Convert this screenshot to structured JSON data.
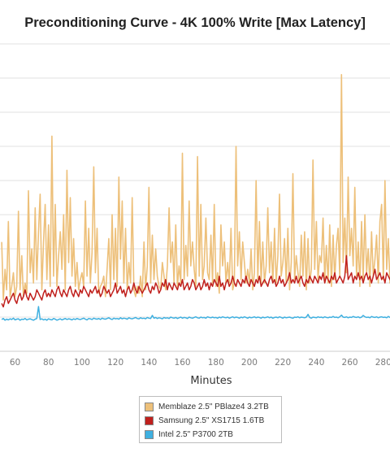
{
  "chart_data": {
    "type": "line",
    "title": "Preconditioning Curve - 4K 100% Write [Max Latency]",
    "xlabel": "Minutes",
    "ylabel": "",
    "x_tick_labels": [
      "60",
      "80",
      "100",
      "120",
      "140",
      "160",
      "180",
      "200",
      "220",
      "240",
      "260",
      "280"
    ],
    "xlim": [
      51,
      284
    ],
    "ylim": [
      0,
      9
    ],
    "grid": true,
    "legend_position": "bottom-center",
    "series": [
      {
        "name": "Memblaze 2.5\" PBlaze4 3.2TB",
        "color": "#edc07a",
        "x_start": 52,
        "values": [
          3.2,
          1.5,
          2.4,
          1.8,
          3.8,
          1.6,
          1.9,
          2.3,
          1.6,
          1.9,
          4.1,
          1.8,
          2.8,
          1.6,
          2.0,
          1.7,
          4.7,
          2.3,
          3.0,
          2.0,
          4.2,
          2.1,
          3.5,
          4.6,
          1.8,
          3.2,
          4.3,
          2.1,
          3.7,
          1.9,
          6.3,
          2.2,
          4.3,
          1.9,
          2.8,
          3.5,
          2.4,
          4.0,
          1.8,
          5.3,
          2.6,
          4.5,
          2.2,
          3.3,
          1.9,
          2.6,
          1.8,
          2.1,
          2.3,
          1.9,
          4.4,
          2.2,
          3.6,
          2.0,
          2.9,
          5.4,
          2.3,
          3.6,
          1.7,
          1.9,
          2.0,
          2.2,
          1.6,
          2.4,
          3.3,
          1.8,
          4.0,
          2.1,
          3.6,
          1.9,
          5.1,
          2.7,
          4.4,
          2.0,
          3.6,
          1.8,
          2.6,
          2.0,
          4.5,
          1.8,
          1.6,
          1.9,
          1.7,
          2.2,
          1.6,
          3.2,
          1.8,
          2.5,
          4.8,
          2.0,
          3.4,
          2.1,
          3.0,
          2.2,
          1.9,
          1.8,
          2.6,
          2.2,
          1.8,
          2.5,
          4.2,
          2.6,
          3.2,
          2.0,
          3.7,
          1.9,
          2.5,
          2.0,
          5.8,
          2.1,
          3.1,
          2.2,
          4.4,
          2.5,
          3.2,
          2.4,
          1.9,
          5.7,
          2.2,
          4.3,
          2.1,
          2.5,
          3.9,
          2.3,
          2.1,
          3.4,
          2.0,
          4.3,
          1.9,
          2.3,
          1.7,
          3.7,
          2.5,
          3.2,
          2.0,
          2.6,
          2.0,
          3.6,
          1.8,
          2.0,
          6.0,
          2.5,
          3.5,
          2.1,
          3.2,
          2.6,
          2.0,
          2.4,
          2.0,
          3.0,
          1.8,
          2.3,
          5.0,
          2.1,
          3.8,
          2.0,
          3.2,
          2.0,
          2.5,
          4.2,
          2.3,
          3.2,
          2.0,
          3.6,
          2.0,
          2.8,
          4.6,
          2.2,
          2.6,
          3.3,
          2.0,
          3.6,
          1.8,
          2.6,
          5.2,
          2.1,
          2.8,
          2.3,
          1.9,
          3.4,
          2.2,
          3.5,
          1.8,
          3.3,
          2.0,
          2.4,
          5.6,
          2.4,
          3.8,
          2.1,
          2.8,
          2.6,
          3.9,
          2.1,
          3.1,
          2.0,
          3.7,
          1.9,
          3.4,
          2.1,
          3.1,
          3.6,
          2.2,
          8.1,
          2.6,
          3.9,
          2.3,
          5.1,
          2.8,
          3.6,
          2.5,
          4.8,
          2.2,
          3.2,
          1.9,
          3.8,
          2.1,
          4.0,
          2.3,
          3.0,
          1.9,
          3.5,
          2.2,
          2.7,
          3.4,
          2.0,
          3.8,
          4.3,
          2.1,
          5.0,
          2.4,
          3.3,
          2.0,
          2.6,
          4.0,
          2.2,
          3.3,
          1.9,
          2.3
        ]
      },
      {
        "name": "Samsung 2.5\" XS1715 1.6TB",
        "color": "#c0201d",
        "x_start": 52,
        "values": [
          1.4,
          1.3,
          1.5,
          1.6,
          1.4,
          1.5,
          1.6,
          1.7,
          1.5,
          1.4,
          1.6,
          1.7,
          1.5,
          1.6,
          1.8,
          1.6,
          1.5,
          1.7,
          1.6,
          1.5,
          1.6,
          1.8,
          1.7,
          1.6,
          1.5,
          1.7,
          1.8,
          1.6,
          1.7,
          1.6,
          1.8,
          1.7,
          1.6,
          1.8,
          1.9,
          1.7,
          1.6,
          1.8,
          1.7,
          1.6,
          1.8,
          1.9,
          1.7,
          1.6,
          1.8,
          1.7,
          1.6,
          1.8,
          1.7,
          1.9,
          1.8,
          1.7,
          1.6,
          1.8,
          1.7,
          1.8,
          1.9,
          1.7,
          1.8,
          1.6,
          1.7,
          1.9,
          1.8,
          1.7,
          1.8,
          1.6,
          1.7,
          1.8,
          2.0,
          1.7,
          1.8,
          1.9,
          1.7,
          1.8,
          1.6,
          1.8,
          1.9,
          1.7,
          1.8,
          2.0,
          1.8,
          1.7,
          1.9,
          1.8,
          1.7,
          1.8,
          1.9,
          2.0,
          1.8,
          1.7,
          1.9,
          1.8,
          2.0,
          1.9,
          1.7,
          1.8,
          2.0,
          1.9,
          2.1,
          1.8,
          2.0,
          1.9,
          1.8,
          2.0,
          1.9,
          1.8,
          2.0,
          1.9,
          2.1,
          1.8,
          1.9,
          2.0,
          1.8,
          1.9,
          2.1,
          2.0,
          1.8,
          1.9,
          2.0,
          1.8,
          1.9,
          2.1,
          1.9,
          2.0,
          1.8,
          2.0,
          1.9,
          2.1,
          2.0,
          1.9,
          2.2,
          1.9,
          2.0,
          1.8,
          2.0,
          2.1,
          1.9,
          2.0,
          2.2,
          2.0,
          1.9,
          2.1,
          2.0,
          1.9,
          2.1,
          2.0,
          2.2,
          2.0,
          1.9,
          2.1,
          2.0,
          1.9,
          2.1,
          2.0,
          2.2,
          1.9,
          2.0,
          2.1,
          2.0,
          1.9,
          2.1,
          2.2,
          2.0,
          2.1,
          1.9,
          2.0,
          2.2,
          2.0,
          2.1,
          1.9,
          2.0,
          2.1,
          2.3,
          2.0,
          2.1,
          2.0,
          2.2,
          2.0,
          2.1,
          2.2,
          2.0,
          1.9,
          2.1,
          2.0,
          2.2,
          2.1,
          2.0,
          2.2,
          2.1,
          2.0,
          2.2,
          2.1,
          2.3,
          2.0,
          2.2,
          2.1,
          2.0,
          2.2,
          2.1,
          2.3,
          2.0,
          2.1,
          2.2,
          2.1,
          2.0,
          2.2,
          2.8,
          2.1,
          2.2,
          2.3,
          2.0,
          2.2,
          2.1,
          2.3,
          2.1,
          2.2,
          2.0,
          2.2,
          2.3,
          2.1,
          2.2,
          2.0,
          2.2,
          2.4,
          2.1,
          2.2,
          2.3,
          2.1,
          2.2,
          2.0,
          2.3,
          2.2,
          2.1,
          2.3,
          2.4,
          2.1,
          2.2,
          2.3,
          2.1,
          2.2,
          2.1
        ]
      },
      {
        "name": "Intel 2.5\" P3700 2TB",
        "color": "#3fb0e0",
        "x_start": 52,
        "values": [
          0.93,
          0.96,
          0.91,
          0.94,
          0.92,
          0.95,
          0.93,
          0.97,
          0.92,
          0.94,
          0.95,
          0.91,
          0.94,
          0.93,
          0.96,
          0.92,
          0.94,
          0.95,
          0.93,
          0.91,
          0.94,
          0.96,
          1.31,
          0.93,
          0.95,
          0.92,
          0.94,
          0.91,
          0.95,
          0.93,
          0.92,
          0.96,
          0.94,
          0.91,
          0.93,
          0.95,
          0.92,
          0.94,
          0.96,
          0.93,
          0.95,
          0.94,
          0.92,
          0.95,
          0.93,
          0.96,
          0.94,
          0.93,
          0.95,
          0.97,
          0.94,
          0.92,
          0.96,
          0.95,
          0.93,
          0.97,
          0.95,
          0.94,
          0.96,
          0.93,
          0.97,
          0.95,
          0.94,
          0.96,
          0.98,
          0.95,
          0.93,
          0.97,
          0.95,
          0.96,
          0.94,
          0.98,
          0.95,
          0.97,
          0.96,
          0.94,
          0.98,
          0.96,
          0.95,
          0.97,
          0.99,
          0.96,
          0.95,
          0.98,
          0.96,
          0.97,
          0.95,
          0.99,
          0.97,
          0.96,
          1.05,
          0.97,
          0.99,
          0.96,
          0.98,
          0.97,
          0.95,
          0.99,
          0.97,
          0.98,
          0.96,
          1.0,
          0.98,
          0.97,
          0.99,
          0.96,
          0.98,
          1.0,
          0.97,
          0.99,
          0.98,
          0.96,
          1.0,
          0.98,
          0.97,
          0.99,
          1.01,
          0.98,
          0.97,
          1.0,
          0.98,
          0.99,
          0.97,
          1.01,
          0.99,
          0.98,
          1.0,
          0.98,
          0.99,
          0.97,
          1.0,
          0.98,
          1.01,
          0.99,
          0.98,
          1.0,
          0.97,
          0.99,
          1.01,
          0.98,
          1.0,
          0.99,
          0.97,
          1.0,
          0.98,
          1.01,
          0.99,
          0.97,
          1.0,
          0.98,
          0.99,
          1.01,
          0.98,
          1.0,
          0.99,
          0.97,
          1.0,
          0.98,
          0.99,
          1.01,
          0.98,
          1.0,
          0.97,
          0.99,
          1.0,
          0.98,
          1.01,
          0.99,
          0.97,
          1.0,
          0.98,
          0.99,
          1.0,
          0.98,
          0.97,
          1.0,
          0.99,
          1.01,
          0.98,
          1.0,
          0.99,
          0.98,
          1.0,
          1.08,
          0.99,
          0.97,
          1.0,
          0.99,
          0.98,
          1.01,
          0.99,
          1.0,
          0.98,
          1.01,
          0.99,
          0.98,
          1.0,
          0.99,
          1.02,
          0.99,
          1.0,
          0.98,
          1.01,
          1.06,
          1.0,
          0.99,
          1.01,
          0.98,
          1.0,
          0.99,
          1.02,
          1.0,
          0.99,
          1.01,
          0.98,
          1.0,
          1.05,
          1.01,
          0.99,
          1.0,
          0.98,
          1.02,
          1.0,
          0.99,
          1.01,
          0.98,
          1.0,
          1.01,
          0.99,
          1.0,
          0.98,
          1.02,
          0.99,
          1.0,
          1.01,
          0.98,
          1.0,
          0.99,
          1.02,
          1.0,
          0.99
        ]
      }
    ]
  }
}
